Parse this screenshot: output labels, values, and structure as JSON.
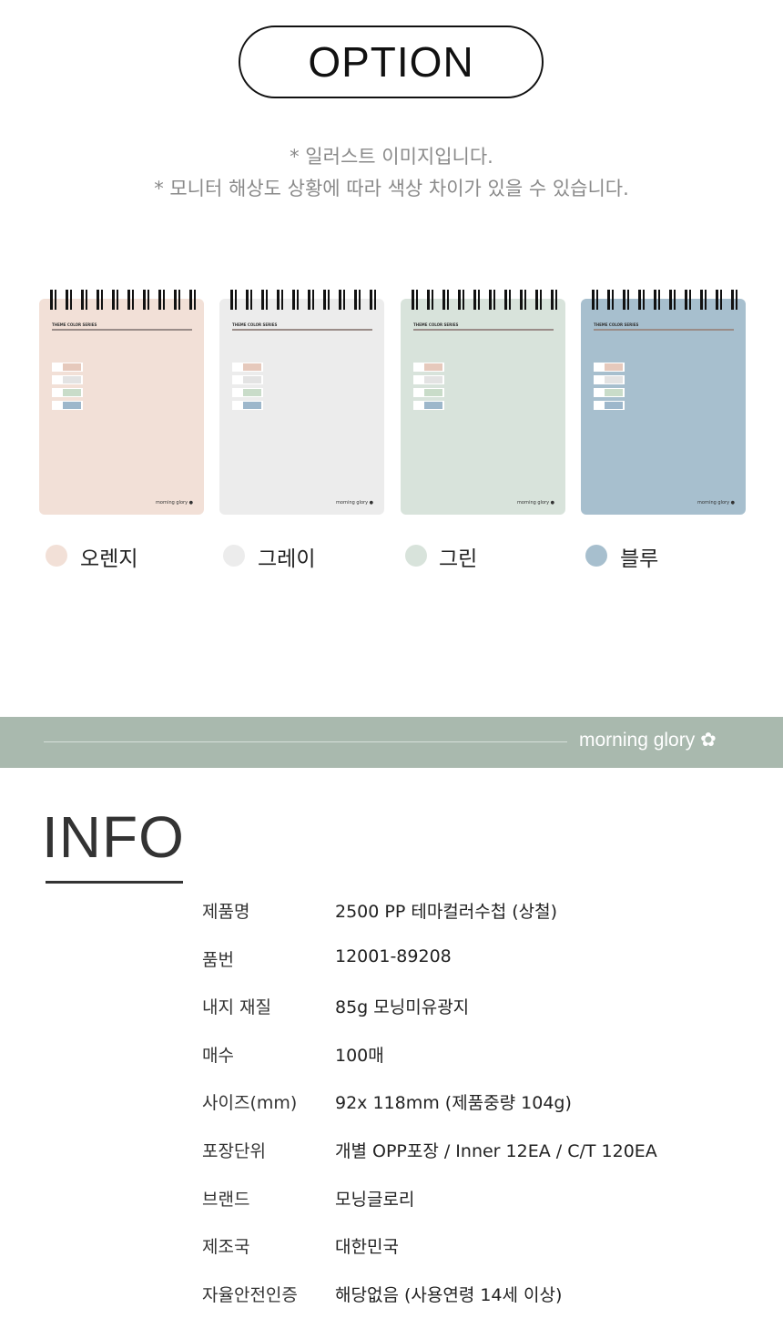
{
  "header": {
    "title": "OPTION"
  },
  "notes": [
    "* 일러스트 이미지입니다.",
    "* 모니터 해상도 상황에 따라 색상 차이가 있을 수 있습니다."
  ],
  "notebook": {
    "cover_title": "THEME COLOR SERIES",
    "brand": "morning glory",
    "swatch_colors": [
      "#e6c9bc",
      "#e3e3e3",
      "#c9dcc9",
      "#9db7cb"
    ]
  },
  "options": [
    {
      "label": "오렌지",
      "color": "#f2e0d7"
    },
    {
      "label": "그레이",
      "color": "#ececec"
    },
    {
      "label": "그린",
      "color": "#d8e3db"
    },
    {
      "label": "블루",
      "color": "#a7bfce"
    }
  ],
  "banner": {
    "brand": "morning glory",
    "color": "#a9b9ae"
  },
  "info": {
    "title": "INFO",
    "rows": [
      {
        "key": "제품명",
        "value": "2500 PP 테마컬러수첩 (상철)"
      },
      {
        "key": "품번",
        "value": "12001-89208"
      },
      {
        "key": "내지 재질",
        "value": "85g 모닝미유광지"
      },
      {
        "key": "매수",
        "value": "100매"
      },
      {
        "key": "사이즈(mm)",
        "value": "92x 118mm (제품중량 104g)"
      },
      {
        "key": "포장단위",
        "value": "개별 OPP포장 / Inner 12EA /  C/T 120EA"
      },
      {
        "key": "브랜드",
        "value": "모닝글로리"
      },
      {
        "key": "제조국",
        "value": "대한민국"
      },
      {
        "key": "자율안전인증",
        "value": "해당없음 (사용연령 14세 이상)"
      }
    ]
  }
}
